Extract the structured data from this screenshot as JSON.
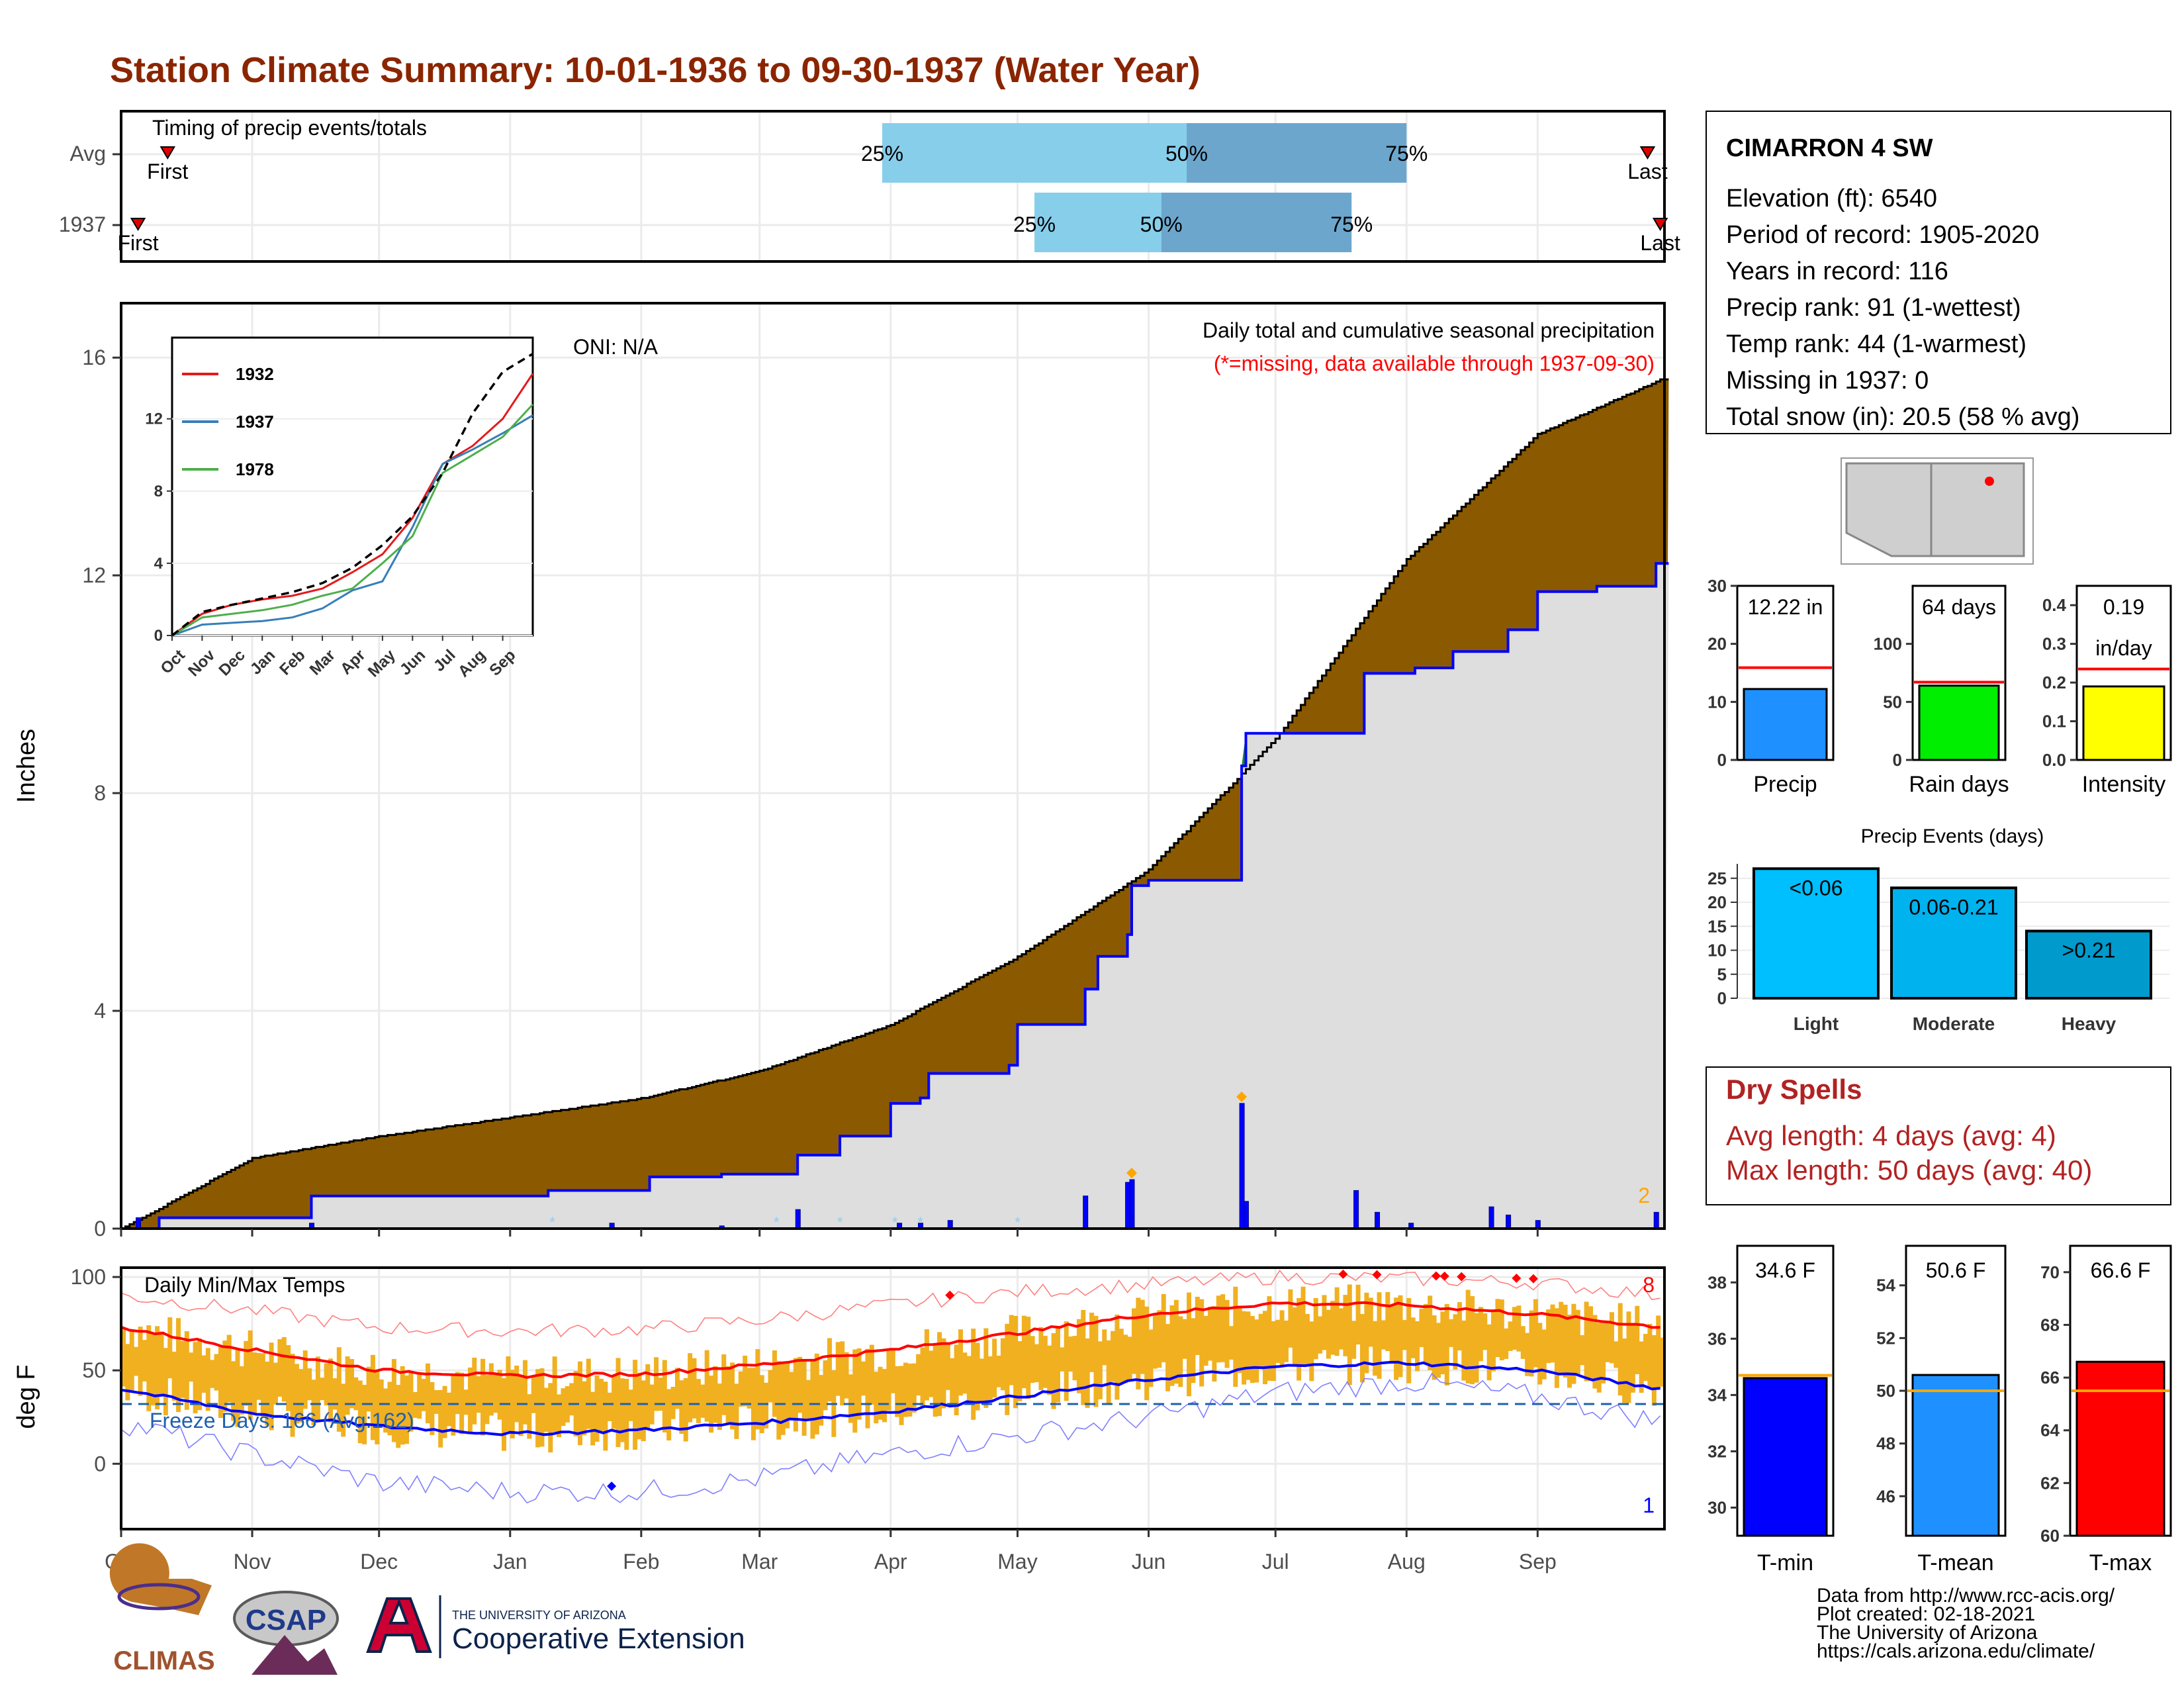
{
  "title": "Station Climate Summary: 10-01-1936 to 09-30-1937 (Water Year)",
  "colors": {
    "title": "#8B2500",
    "cumulative_avg_fill": "#8B5A00",
    "above_avg_fill": "#1E8B1E",
    "season_fill": "#DEDEDE",
    "precip_line": "#0000FF",
    "temp_bar": "#F0B020",
    "tmax_avg": "#FF0000",
    "tmin_avg": "#0000FF",
    "record_high_line": "#FF8080",
    "record_low_line": "#8080FF",
    "timing_light": "#87CEEB",
    "timing_dark": "#6CA6CD",
    "dry_spells_text": "#B22222",
    "freeze_text": "#1F5FAF"
  },
  "timing": {
    "label": "Timing of precip events/totals",
    "rows": [
      {
        "name": "Avg",
        "first": "First",
        "last": "Last",
        "p25": "25%",
        "p50": "50%",
        "p75": "75%",
        "first_date": "1936-10-12",
        "last_date": "1937-09-27",
        "p25_date": "1937-03-30",
        "p50_date": "1937-06-10",
        "p75_date": "1937-08-01"
      },
      {
        "name": "1937",
        "first": "First",
        "last": "Last",
        "p25": "25%",
        "p50": "50%",
        "p75": "75%",
        "first_date": "1936-10-05",
        "last_date": "1937-09-30",
        "p25_date": "1937-05-05",
        "p50_date": "1937-06-04",
        "p75_date": "1937-07-19"
      }
    ]
  },
  "precip_panel": {
    "ylabel": "Inches",
    "oni": "ONI: N/A",
    "subtitle": "Daily total and cumulative seasonal precipitation",
    "missing_note": "(*=missing, data available through 1937-09-30)",
    "corner_count": "2",
    "inset": {
      "yticks": [
        "0",
        "4",
        "8",
        "12"
      ],
      "months": [
        "Oct",
        "Nov",
        "Dec",
        "Jan",
        "Feb",
        "Mar",
        "Apr",
        "May",
        "Jun",
        "Jul",
        "Aug",
        "Sep"
      ],
      "legend": [
        {
          "name": "1932",
          "color": "#E41A1C"
        },
        {
          "name": "1937",
          "color": "#377EB8"
        },
        {
          "name": "1978",
          "color": "#4DAF4A"
        }
      ]
    }
  },
  "temp_panel": {
    "ylabel": "deg F",
    "label": "Daily Min/Max Temps",
    "freeze": "Freeze Days: 166 (Avg:162)",
    "high_count": "8",
    "low_count": "1"
  },
  "station": {
    "name": "CIMARRON 4 SW",
    "lines": [
      "Elevation (ft): 6540",
      "Period of record: 1905-2020",
      "Years in record: 116",
      "Precip rank: 91 (1-wettest)",
      "Temp rank: 44 (1-warmest)",
      "Missing in 1937: 0",
      "Total snow (in): 20.5 (58 % avg)"
    ]
  },
  "summary_bars": [
    {
      "label": "Precip",
      "value_label": "12.22 in",
      "value": 12.22,
      "avg": 15.9,
      "ymax": 30,
      "ticks": [
        "0",
        "10",
        "20",
        "30"
      ],
      "color": "#1E90FF"
    },
    {
      "label": "Rain days",
      "value_label": "64 days",
      "value": 64,
      "avg": 67,
      "ymax": 150,
      "ticks": [
        "0",
        "50",
        "100"
      ],
      "color": "#00EE00"
    },
    {
      "label": "Intensity",
      "value_label": "0.19",
      "value_label2": "in/day",
      "value": 0.19,
      "avg": 0.235,
      "ymax": 0.45,
      "ticks": [
        "0.0",
        "0.1",
        "0.2",
        "0.3",
        "0.4"
      ],
      "color": "#FFFF00"
    }
  ],
  "precip_events": {
    "title": "Precip Events (days)",
    "ticks": [
      "0",
      "5",
      "10",
      "15",
      "20",
      "25"
    ],
    "bars": [
      {
        "label": "Light",
        "range": "<0.06",
        "value": 27,
        "color": "#00BFFF"
      },
      {
        "label": "Moderate",
        "range": "0.06-0.21",
        "value": 23,
        "color": "#00B2EE"
      },
      {
        "label": "Heavy",
        "range": ">0.21",
        "value": 14,
        "color": "#009ACD"
      }
    ]
  },
  "dry_spells": {
    "title": "Dry Spells",
    "avg_length": "Avg length: 4 days (avg: 4)",
    "max_length": "Max length: 50 days (avg: 40)"
  },
  "temp_bars": [
    {
      "label": "T-min",
      "value_label": "34.6 F",
      "value": 34.6,
      "avg": 34.7,
      "ymin": 29,
      "ymax": 39.3,
      "ticks": [
        "30",
        "32",
        "34",
        "36",
        "38"
      ],
      "color": "#0000FF"
    },
    {
      "label": "T-mean",
      "value_label": "50.6 F",
      "value": 50.6,
      "avg": 50.0,
      "ymin": 44.5,
      "ymax": 55.5,
      "ticks": [
        "46",
        "48",
        "50",
        "52",
        "54"
      ],
      "color": "#1E90FF"
    },
    {
      "label": "T-max",
      "value_label": "66.6 F",
      "value": 66.6,
      "avg": 65.5,
      "ymin": 60,
      "ymax": 71,
      "ticks": [
        "60",
        "62",
        "64",
        "66",
        "68",
        "70"
      ],
      "color": "#FF0000"
    }
  ],
  "footer": {
    "lines": [
      "Data from http://www.rcc-acis.org/",
      "Plot created: 02-18-2021",
      "The University of Arizona",
      "https://cals.arizona.edu/climate/"
    ],
    "logos": {
      "climas": "CLIMAS",
      "csap": "CSAP",
      "ua_small": "THE UNIVERSITY OF ARIZONA",
      "ua_big": "Cooperative Extension"
    }
  },
  "chart_data": [
    {
      "type": "area",
      "title": "Daily total and cumulative seasonal precipitation",
      "xlabel": "",
      "ylabel": "Inches",
      "ylim": [
        0,
        17
      ],
      "yticks": [
        0,
        4,
        8,
        12,
        16
      ],
      "x_months": [
        "Oct",
        "Nov",
        "Dec",
        "Jan",
        "Feb",
        "Mar",
        "Apr",
        "May",
        "Jun",
        "Jul",
        "Aug",
        "Sep"
      ],
      "series": [
        {
          "name": "Average cumulative",
          "x": [
            "1936-10-01",
            "1936-11-01",
            "1936-12-01",
            "1937-01-01",
            "1937-02-01",
            "1937-03-01",
            "1937-04-01",
            "1937-05-01",
            "1937-06-01",
            "1937-07-01",
            "1937-08-01",
            "1937-09-01",
            "1937-09-30"
          ],
          "y": [
            0,
            1.3,
            1.7,
            2.05,
            2.4,
            2.9,
            3.75,
            5.0,
            6.6,
            9.0,
            12.3,
            14.6,
            15.6
          ]
        },
        {
          "name": "1937 cumulative",
          "x": [
            "1936-10-01",
            "1936-10-10",
            "1936-11-15",
            "1937-01-10",
            "1937-02-03",
            "1937-02-20",
            "1937-03-10",
            "1937-03-20",
            "1937-04-01",
            "1937-04-08",
            "1937-04-10",
            "1937-04-29",
            "1937-05-01",
            "1937-05-17",
            "1937-05-20",
            "1937-05-27",
            "1937-05-28",
            "1937-06-01",
            "1937-06-23",
            "1937-06-24",
            "1937-07-15",
            "1937-07-22",
            "1937-08-03",
            "1937-08-12",
            "1937-08-22",
            "1937-08-25",
            "1937-09-01",
            "1937-09-15",
            "1937-09-29"
          ],
          "y": [
            0,
            0.2,
            0.6,
            0.7,
            0.95,
            1.0,
            1.35,
            1.7,
            2.3,
            2.4,
            2.85,
            3.0,
            3.75,
            4.4,
            5.0,
            5.4,
            6.3,
            6.4,
            8.5,
            9.1,
            9.1,
            10.2,
            10.3,
            10.6,
            10.6,
            11.0,
            11.7,
            11.8,
            12.22
          ]
        },
        {
          "name": "Daily precipitation",
          "x": [
            "1936-10-05",
            "1936-11-15",
            "1937-01-25",
            "1937-02-20",
            "1937-03-10",
            "1937-04-03",
            "1937-04-08",
            "1937-04-15",
            "1937-05-17",
            "1937-05-27",
            "1937-05-28",
            "1937-06-23",
            "1937-06-24",
            "1937-07-20",
            "1937-07-25",
            "1937-08-02",
            "1937-08-21",
            "1937-08-25",
            "1937-09-01",
            "1937-09-29"
          ],
          "y": [
            0.2,
            0.1,
            0.1,
            0.05,
            0.35,
            0.1,
            0.1,
            0.15,
            0.6,
            0.85,
            0.9,
            2.3,
            0.5,
            0.7,
            0.3,
            0.1,
            0.4,
            0.25,
            0.15,
            0.3
          ]
        }
      ],
      "annotations": [
        "ONI: N/A",
        "(*=missing, data available through 1937-09-30)"
      ]
    },
    {
      "type": "line",
      "title": "",
      "xlabel": "",
      "ylabel": "",
      "ylim": [
        0,
        16.5
      ],
      "yticks": [
        0,
        4,
        8,
        12
      ],
      "x_months": [
        "Oct",
        "Nov",
        "Dec",
        "Jan",
        "Feb",
        "Mar",
        "Apr",
        "May",
        "Jun",
        "Jul",
        "Aug",
        "Sep"
      ],
      "series": [
        {
          "name": "1932",
          "x": [
            0,
            1,
            2,
            3,
            4,
            5,
            6,
            7,
            8,
            9,
            10,
            11,
            12
          ],
          "y": [
            0,
            1.2,
            1.7,
            2.0,
            2.2,
            2.6,
            3.5,
            4.5,
            6.5,
            9.5,
            10.5,
            12.0,
            14.5
          ]
        },
        {
          "name": "1937",
          "x": [
            0,
            1,
            2,
            3,
            4,
            5,
            6,
            7,
            8,
            9,
            10,
            11,
            12
          ],
          "y": [
            0,
            0.6,
            0.7,
            0.8,
            1.0,
            1.5,
            2.5,
            3.0,
            6.0,
            9.5,
            10.3,
            11.2,
            12.2
          ]
        },
        {
          "name": "1978",
          "x": [
            0,
            1,
            2,
            3,
            4,
            5,
            6,
            7,
            8,
            9,
            10,
            11,
            12
          ],
          "y": [
            0,
            1.0,
            1.2,
            1.4,
            1.7,
            2.2,
            2.6,
            4.0,
            5.5,
            9.0,
            10.0,
            11.0,
            12.8
          ]
        },
        {
          "x": [
            0,
            1,
            2,
            3,
            4,
            5,
            6,
            7,
            8,
            9,
            10,
            11,
            12
          ],
          "y": [
            0,
            1.3,
            1.7,
            2.05,
            2.4,
            2.9,
            3.75,
            5.0,
            6.6,
            9.0,
            12.3,
            14.6,
            15.6
          ]
        }
      ]
    },
    {
      "type": "line",
      "title": "Daily Min/Max Temps",
      "xlabel": "",
      "ylabel": "deg F",
      "ylim": [
        -35,
        105
      ],
      "yticks": [
        0,
        50,
        100
      ],
      "x_months": [
        "Oct",
        "Nov",
        "Dec",
        "Jan",
        "Feb",
        "Mar",
        "Apr",
        "May",
        "Jun",
        "Jul",
        "Aug",
        "Sep"
      ],
      "series": [
        {
          "name": "Average max",
          "x": [
            0,
            1,
            2,
            3,
            4,
            5,
            6,
            7,
            8,
            9,
            10,
            11,
            12
          ],
          "y": [
            73,
            61,
            50,
            47,
            48,
            53,
            61,
            70,
            80,
            86,
            85,
            80,
            73
          ]
        },
        {
          "name": "Average min",
          "x": [
            0,
            1,
            2,
            3,
            4,
            5,
            6,
            7,
            8,
            9,
            10,
            11,
            12
          ],
          "y": [
            40,
            27,
            20,
            16,
            18,
            22,
            28,
            36,
            45,
            52,
            54,
            50,
            40
          ]
        },
        {
          "name": "Record high",
          "x": [
            0,
            1,
            2,
            3,
            4,
            5,
            6,
            7,
            8,
            9,
            10,
            11,
            12
          ],
          "y": [
            90,
            82,
            73,
            71,
            72,
            77,
            85,
            92,
            96,
            100,
            99,
            97,
            90
          ]
        },
        {
          "name": "Record low",
          "x": [
            0,
            1,
            2,
            3,
            4,
            5,
            6,
            7,
            8,
            9,
            10,
            11,
            12
          ],
          "y": [
            22,
            5,
            -10,
            -15,
            -15,
            -8,
            5,
            15,
            25,
            38,
            44,
            36,
            22
          ]
        }
      ],
      "annotations": [
        "Freeze Days: 166 (Avg:162)"
      ]
    },
    {
      "type": "bar",
      "title": "",
      "categories": [
        "Precip",
        "Rain days",
        "Intensity"
      ],
      "values": [
        12.22,
        64,
        0.19
      ]
    },
    {
      "type": "bar",
      "title": "Precip Events (days)",
      "categories": [
        "Light",
        "Moderate",
        "Heavy"
      ],
      "values": [
        27,
        23,
        14
      ]
    },
    {
      "type": "bar",
      "title": "",
      "categories": [
        "T-min",
        "T-mean",
        "T-max"
      ],
      "values": [
        34.6,
        50.6,
        66.6
      ]
    }
  ]
}
